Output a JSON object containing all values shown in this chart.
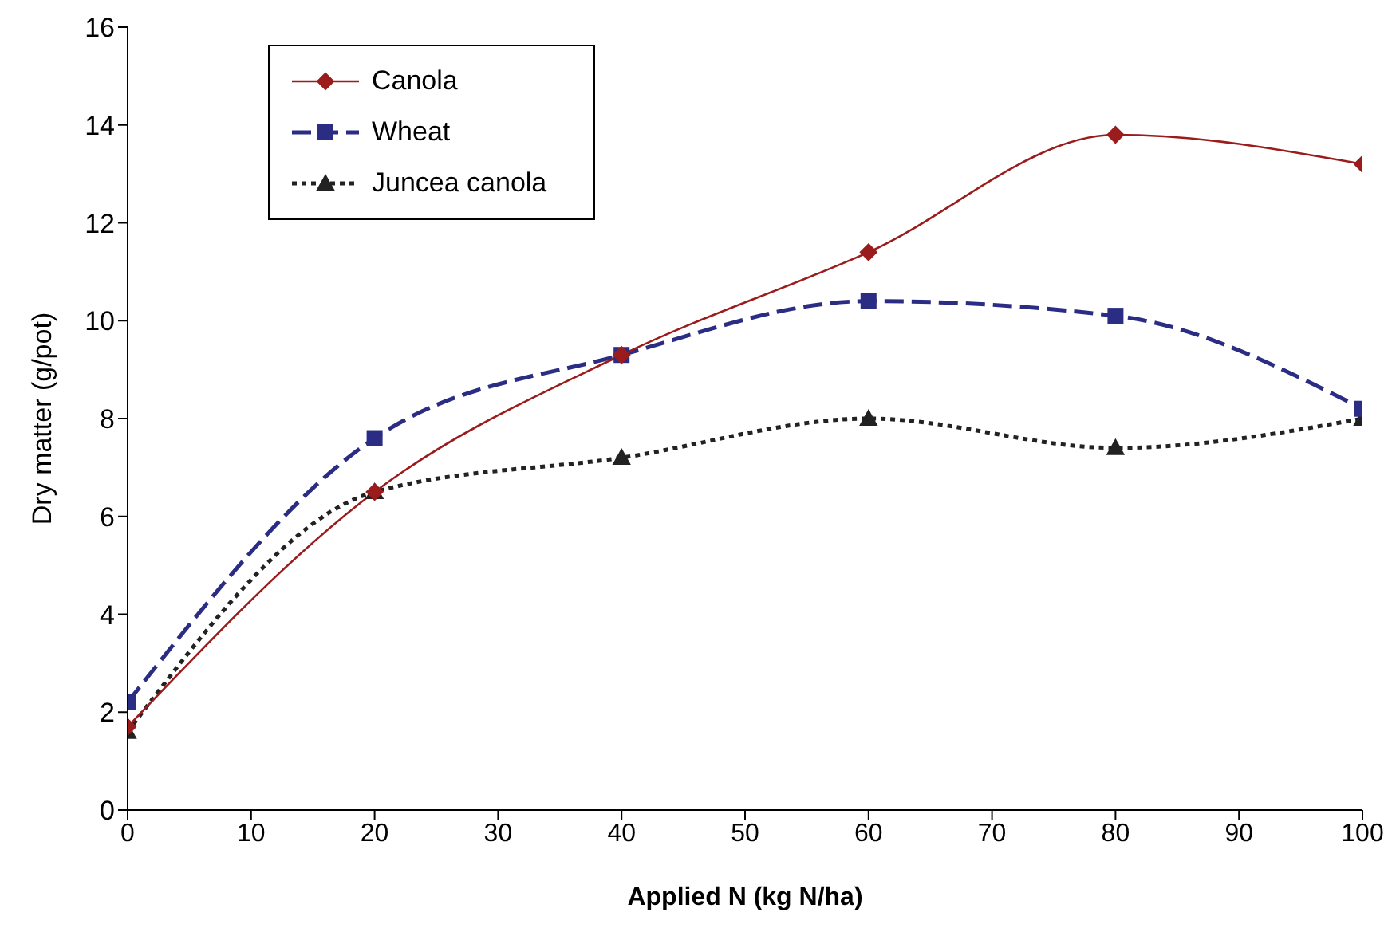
{
  "chart_data": {
    "type": "line",
    "xlabel": "Applied N (kg N/ha)",
    "ylabel": "Dry matter (g/pot)",
    "x": [
      0,
      20,
      40,
      60,
      80,
      100
    ],
    "series": [
      {
        "name": "Canola",
        "color": "#9b1c1c",
        "values": [
          1.7,
          6.5,
          9.3,
          11.4,
          13.8,
          13.2
        ],
        "marker": "diamond",
        "line_style": "solid"
      },
      {
        "name": "Wheat",
        "color": "#2b2d84",
        "values": [
          2.2,
          7.6,
          9.3,
          10.4,
          10.1,
          8.2
        ],
        "marker": "square",
        "line_style": "dashed"
      },
      {
        "name": "Juncea canola",
        "color": "#222222",
        "values": [
          1.6,
          6.5,
          7.2,
          8.0,
          7.4,
          8.0
        ],
        "marker": "triangle",
        "line_style": "dotted"
      }
    ],
    "xlim": [
      0,
      100
    ],
    "xticks": [
      0,
      10,
      20,
      30,
      40,
      50,
      60,
      70,
      80,
      90,
      100
    ],
    "ylim": [
      0,
      16
    ],
    "yticks": [
      0,
      2,
      4,
      6,
      8,
      10,
      12,
      14,
      16
    ],
    "grid": false,
    "legend": "top left"
  }
}
